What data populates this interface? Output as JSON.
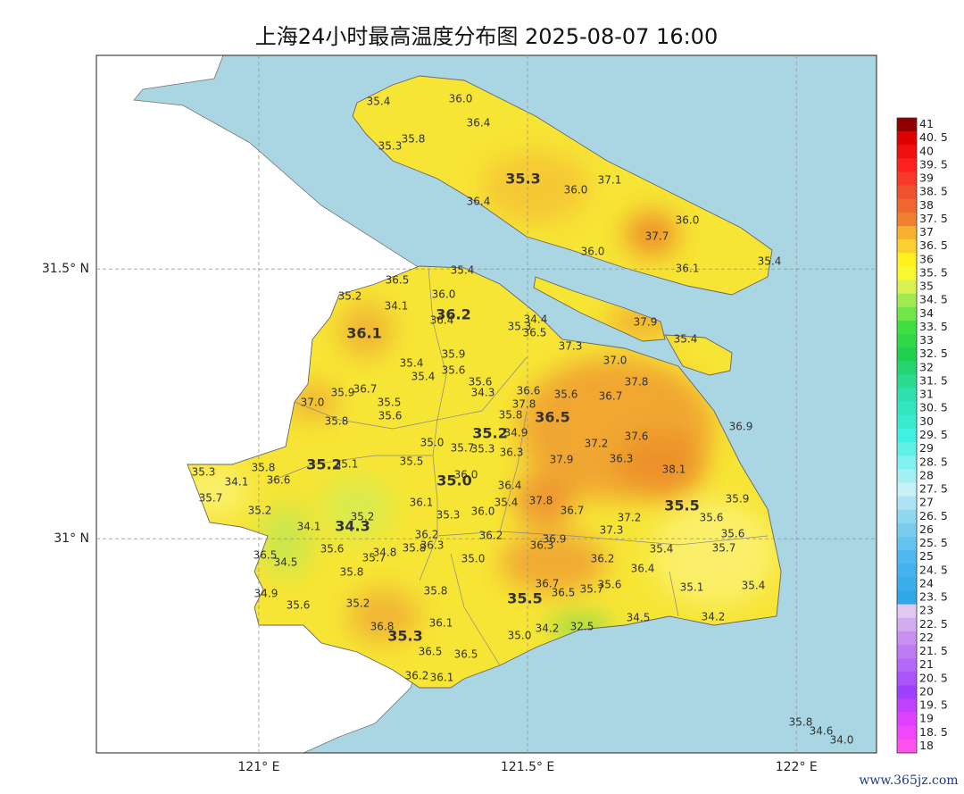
{
  "chart_data": {
    "type": "map",
    "title": "上海24小时最高温度分布图 2025-08-07 16:00",
    "xlim": [
      120.698,
      122.149
    ],
    "ylim": [
      30.603,
      31.896
    ],
    "xticks": [
      {
        "value": 121,
        "label": "121° E"
      },
      {
        "value": 121.5,
        "label": "121.5° E"
      },
      {
        "value": 122,
        "label": "122° E"
      }
    ],
    "yticks": [
      {
        "value": 31,
        "label": "31° N"
      },
      {
        "value": 31.5,
        "label": "31.5° N"
      }
    ],
    "grid": true,
    "colorbar": {
      "ticks": [
        41,
        {
          "value": 40.5,
          "label": "40. 5"
        },
        40,
        {
          "value": 39.5,
          "label": "39. 5"
        },
        39,
        {
          "value": 38.5,
          "label": "38. 5"
        },
        38,
        {
          "value": 37.5,
          "label": "37. 5"
        },
        37,
        {
          "value": 36.5,
          "label": "36. 5"
        },
        36,
        {
          "value": 35.5,
          "label": "35. 5"
        },
        35,
        {
          "value": 34.5,
          "label": "34. 5"
        },
        34,
        {
          "value": 33.5,
          "label": "33. 5"
        },
        33,
        {
          "value": 32.5,
          "label": "32. 5"
        },
        32,
        {
          "value": 31.5,
          "label": "31. 5"
        },
        31,
        {
          "value": 30.5,
          "label": "30. 5"
        },
        30,
        {
          "value": 29.5,
          "label": "29. 5"
        },
        29,
        {
          "value": 28.5,
          "label": "28. 5"
        },
        28,
        {
          "value": 27.5,
          "label": "27. 5"
        },
        27,
        {
          "value": 26.5,
          "label": "26. 5"
        },
        26,
        {
          "value": 25.5,
          "label": "25. 5"
        },
        25,
        {
          "value": 24.5,
          "label": "24. 5"
        },
        24,
        {
          "value": 23.5,
          "label": "23. 5"
        },
        23,
        {
          "value": 22.5,
          "label": "22. 5"
        },
        22,
        {
          "value": 21.5,
          "label": "21. 5"
        },
        21,
        {
          "value": 20.5,
          "label": "20. 5"
        },
        20,
        {
          "value": 19.5,
          "label": "19. 5"
        },
        19,
        {
          "value": 18.5,
          "label": "18. 5"
        },
        18
      ]
    },
    "stations": {
      "values": [
        35.4,
        36.0,
        36.4,
        35.8,
        35.3,
        36.4,
        36.0,
        37.1,
        37.7,
        36.0,
        36.0,
        36.1,
        35.4,
        37.9,
        35.4,
        35.4,
        35.2,
        36.5,
        36.0,
        34.1,
        36.4,
        34.4,
        35.3,
        36.5,
        37.3,
        35.9,
        35.4,
        35.6,
        35.4,
        37.0,
        37.8,
        35.6,
        34.3,
        36.6,
        35.6,
        36.7,
        35.9,
        36.7,
        37.0,
        35.5,
        37.8,
        35.6,
        35.8,
        36.9,
        35.8,
        35.0,
        34.9,
        37.2,
        37.6,
        35.3,
        35.7,
        36.3,
        36.3,
        37.9,
        38.1,
        35.3,
        35.8,
        35.1,
        35.5,
        34.1,
        36.6,
        36.0,
        36.4,
        35.7,
        35.2,
        36.1,
        35.4,
        37.8,
        36.7,
        35.9,
        35.6,
        35.3,
        36.0,
        37.2,
        37.3,
        35.2,
        34.1,
        36.2,
        36.2,
        35.6,
        36.3,
        35.8,
        36.3,
        36.9,
        35.6,
        34.8,
        35.7,
        35.4,
        35.7,
        36.5,
        34.5,
        35.0,
        36.2,
        36.4,
        35.8,
        36.7,
        36.5,
        35.7,
        35.6,
        35.1,
        35.4,
        35.8,
        34.9,
        35.6,
        35.2,
        34.5,
        34.2,
        36.8,
        36.1,
        34.2,
        32.5,
        35.0,
        36.5,
        36.5,
        36.2,
        36.1,
        35.8,
        34.6,
        34.0
      ],
      "value_labels": [
        "35.4",
        "36.0",
        "36.4",
        "35.8",
        "35.3",
        "36.4",
        "36.0",
        "37.1",
        "37.7",
        "36.0",
        "36.0",
        "36.1",
        "35.4",
        "37.9",
        "35.4",
        "35.4",
        "35.2",
        "36.5",
        "36.0",
        "34.1",
        "36.4",
        "34.4",
        "35.3",
        "36.5",
        "37.3",
        "35.9",
        "35.4",
        "35.6",
        "35.4",
        "37.0",
        "37.8",
        "35.6",
        "34.3",
        "36.6",
        "35.6",
        "36.7",
        "35.9",
        "36.7",
        "37.0",
        "35.5",
        "37.8",
        "35.6",
        "35.8",
        "36.9",
        "35.8",
        "35.0",
        "34.9",
        "37.2",
        "37.6",
        "35.3",
        "35.7",
        "36.3",
        "36.3",
        "37.9",
        "38.1",
        "35.3",
        "35.8",
        "35.1",
        "35.5",
        "34.1",
        "36.6",
        "36.0",
        "36.4",
        "35.7",
        "35.2",
        "36.1",
        "35.4",
        "37.8",
        "36.7",
        "35.9",
        "35.6",
        "35.3",
        "36.0",
        "37.2",
        "37.3",
        "35.2",
        "34.1",
        "36.2",
        "36.2",
        "35.6",
        "36.3",
        "35.8",
        "36.3",
        "36.9",
        "35.6",
        "34.8",
        "35.7",
        "35.4",
        "35.7",
        "36.5",
        "34.5",
        "35.0",
        "36.2",
        "36.4",
        "35.8",
        "36.7",
        "36.5",
        "35.7",
        "35.6",
        "35.1",
        "35.4",
        "35.8",
        "34.9",
        "35.6",
        "35.2",
        "34.5",
        "34.2",
        "36.8",
        "36.1",
        "34.2",
        "32.5",
        "35.0",
        "36.5",
        "36.5",
        "36.2",
        "36.1",
        "35.8",
        "34.6",
        "34.0"
      ]
    },
    "district_values": {
      "values": [
        35.3,
        36.2,
        36.1,
        36.5,
        35.2,
        35.2,
        35.0,
        35.5,
        34.3,
        35.5,
        35.3
      ],
      "value_labels": [
        "35.3",
        "36.2",
        "36.1",
        "36.5",
        "35.2",
        "35.2",
        "35.0",
        "35.5",
        "34.3",
        "35.5",
        "35.3"
      ]
    }
  },
  "watermark": "www.365jz.com"
}
